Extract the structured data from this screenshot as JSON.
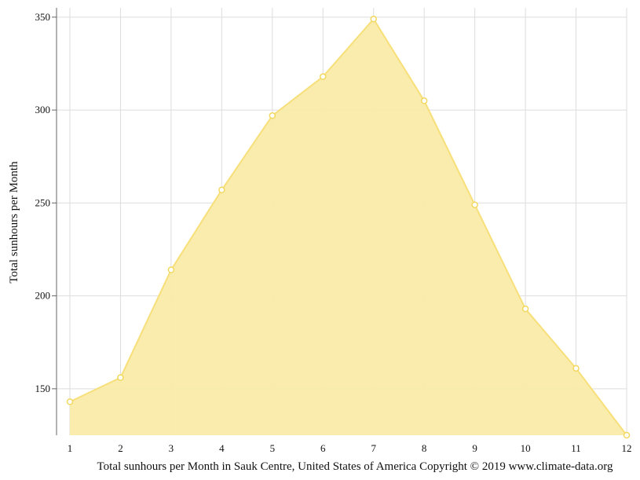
{
  "chart_data": {
    "type": "area",
    "title": "",
    "xlabel": "Total sunhours per Month in Sauk Centre, United States of America Copyright © 2019 www.climate-data.org",
    "ylabel": "Total sunhours per Month",
    "x": [
      1,
      2,
      3,
      4,
      5,
      6,
      7,
      8,
      9,
      10,
      11,
      12
    ],
    "values": [
      143,
      156,
      214,
      257,
      297,
      318,
      349,
      305,
      249,
      193,
      161,
      125
    ],
    "ylim": [
      125,
      355
    ],
    "yticks": [
      150,
      200,
      250,
      300,
      350
    ],
    "xticks": [
      1,
      2,
      3,
      4,
      5,
      6,
      7,
      8,
      9,
      10,
      11,
      12
    ],
    "grid": true,
    "colors": {
      "fill": "#f9eba8",
      "line": "#f7df7a",
      "marker_stroke": "#f2d85f",
      "marker_fill": "#ffffff",
      "grid": "#dddddd",
      "axis": "#666666"
    }
  }
}
